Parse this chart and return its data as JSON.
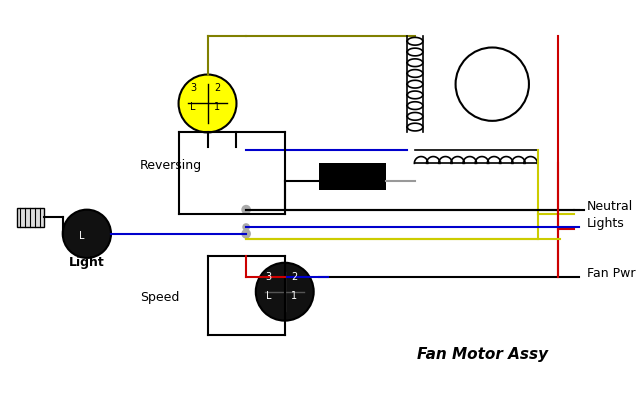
{
  "title": "Fan Motor Assy",
  "bg_color": "#ffffff",
  "reversing_label": "Reversing",
  "speed_label": "Speed",
  "light_label": "Light",
  "neutral_label": "Neutral",
  "lights_label": "Lights",
  "fanpwr_label": "Fan Pwr",
  "fan_motor_label": "Fan Motor Assy",
  "wire_black": "#000000",
  "wire_blue": "#0000cc",
  "wire_red": "#cc0000",
  "wire_yellow": "#cccc00",
  "wire_gray": "#999999",
  "wire_olive": "#808000",
  "switch_yellow_fill": "#ffff00",
  "switch_black_fill": "#111111",
  "coil_color": "#000000",
  "junction_color": "#aaaaaa"
}
